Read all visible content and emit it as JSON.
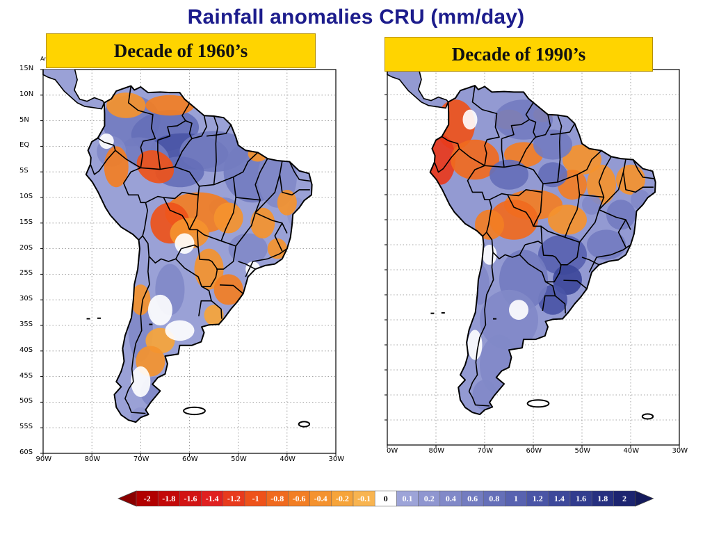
{
  "title": "Rainfall anomalies CRU (mm/day)",
  "panels": [
    {
      "heading": "Decade of 1960’s",
      "pattern": "1960s"
    },
    {
      "heading": "Decade of 1990’s",
      "pattern": "1990s"
    }
  ],
  "lat_labels": [
    "15N",
    "10N",
    "5N",
    "EQ",
    "5S",
    "10S",
    "15S",
    "20S",
    "25S",
    "30S",
    "35S",
    "40S",
    "45S",
    "50S",
    "55S",
    "60S"
  ],
  "lon_labels_left": [
    "90W",
    "80W",
    "70W",
    "60W",
    "50W",
    "40W",
    "30W"
  ],
  "lon_labels_right": [
    "0W",
    "80W",
    "70W",
    "60W",
    "50W",
    "40W",
    "30W"
  ],
  "corner_mark": "Ar",
  "colorbar": {
    "labels": [
      "-2",
      "-1.8",
      "-1.6",
      "-1.4",
      "-1.2",
      "-1",
      "-0.8",
      "-0.6",
      "-0.4",
      "-0.2",
      "-0.1",
      "0",
      "0.1",
      "0.2",
      "0.4",
      "0.6",
      "0.8",
      "1",
      "1.2",
      "1.4",
      "1.6",
      "1.8",
      "2"
    ],
    "colors": [
      "#b10000",
      "#c30808",
      "#d21414",
      "#e02020",
      "#e83a1c",
      "#ee521a",
      "#f06a1e",
      "#f27e24",
      "#f4922e",
      "#f6a43a",
      "#f8b450",
      "#ffffff",
      "#9da4d8",
      "#8f96d0",
      "#8189c8",
      "#737cc0",
      "#656fb8",
      "#5862b0",
      "#4a55a6",
      "#3d489a",
      "#313c8e",
      "#263080",
      "#1c2470"
    ]
  },
  "colors": {
    "title": "#1c1c8c",
    "dry": "#f0852a",
    "dry_strong": "#e65c1a",
    "wet": "#8088c6",
    "wet_strong": "#4650a2",
    "box": "#ffd400"
  }
}
